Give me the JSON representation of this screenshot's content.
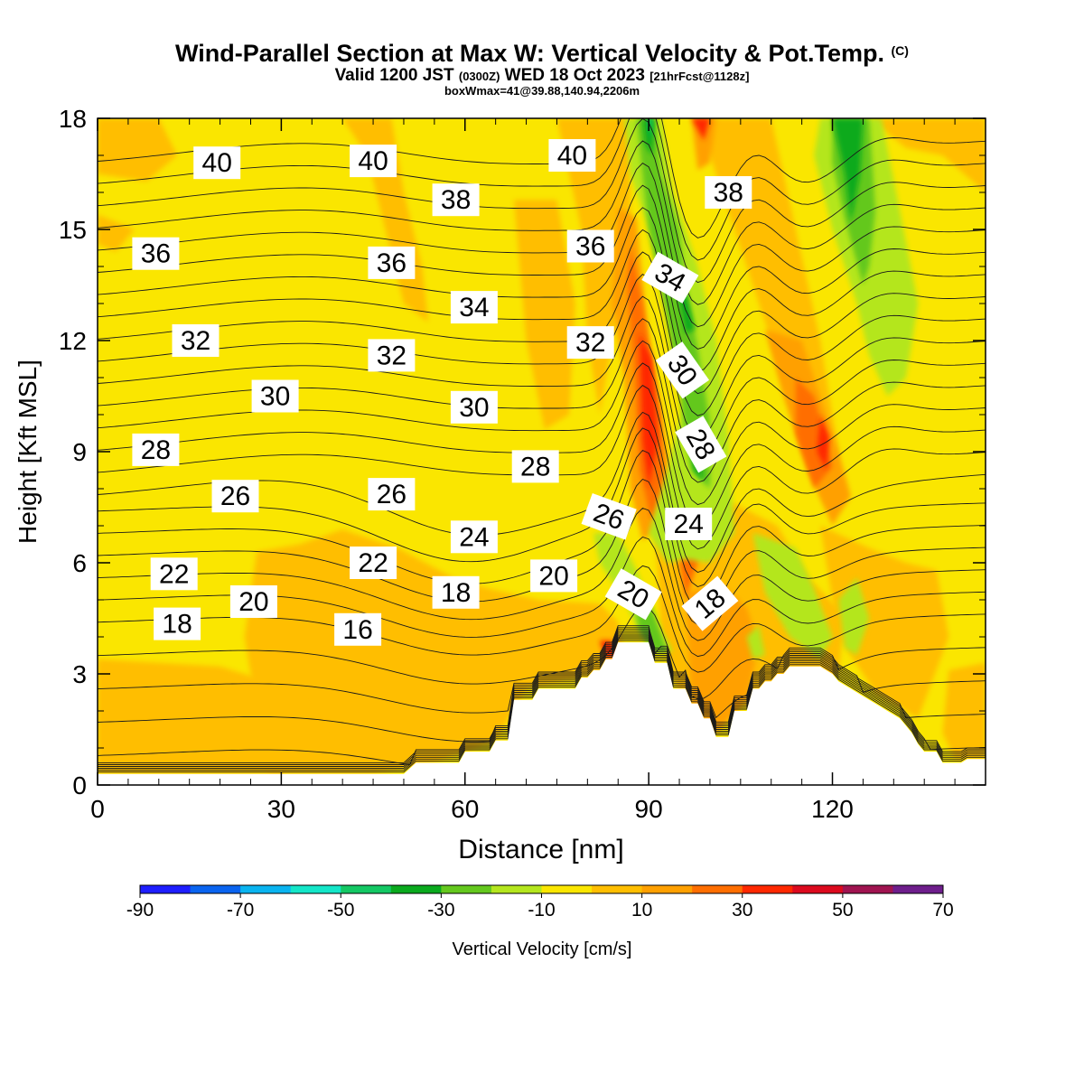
{
  "chart_data": {
    "type": "contour-section",
    "title": "Wind-Parallel Section at Max W: Vertical Velocity & Pot.Temp.",
    "title_mark": "(C)",
    "subtitle_parts": [
      "Valid 1200 JST ",
      "(0300Z)",
      " WED 18 Oct 2023 ",
      "[21hrFcst@1128z]"
    ],
    "subtitle2": "boxWmax=41@39.88,140.94,2206m",
    "xlabel": "Distance [nm]",
    "ylabel": "Height [Kft MSL]",
    "xlim": [
      0,
      145
    ],
    "ylim": [
      0,
      18
    ],
    "xticks": [
      0,
      30,
      60,
      90,
      120
    ],
    "yticks": [
      0,
      3,
      6,
      9,
      12,
      15,
      18
    ],
    "colorbar": {
      "label": "Vertical Velocity [cm/s]",
      "ticks": [
        -90,
        -70,
        -50,
        -30,
        -10,
        10,
        30,
        50,
        70
      ],
      "colors": [
        "#1e1eff",
        "#0a64f0",
        "#0ab4f0",
        "#14e6c8",
        "#14c864",
        "#0aaa1e",
        "#64c81e",
        "#b4e61e",
        "#fae600",
        "#ffbe00",
        "#ffa000",
        "#ff6e00",
        "#ff2800",
        "#dc0a1e",
        "#a01450",
        "#6e1e8c"
      ]
    },
    "terrain": [
      [
        0,
        0.3
      ],
      [
        50,
        0.3
      ],
      [
        52,
        0.6
      ],
      [
        59,
        0.6
      ],
      [
        60,
        0.9
      ],
      [
        64,
        0.9
      ],
      [
        65,
        1.2
      ],
      [
        67,
        1.2
      ],
      [
        68,
        2.3
      ],
      [
        71,
        2.3
      ],
      [
        72,
        2.6
      ],
      [
        78,
        2.6
      ],
      [
        79,
        2.9
      ],
      [
        80,
        2.9
      ],
      [
        81,
        3.1
      ],
      [
        82,
        3.1
      ],
      [
        83,
        3.4
      ],
      [
        84,
        3.4
      ],
      [
        85,
        3.85
      ],
      [
        90,
        3.85
      ],
      [
        91,
        3.3
      ],
      [
        93,
        3.3
      ],
      [
        94,
        2.6
      ],
      [
        96,
        2.6
      ],
      [
        97,
        2.2
      ],
      [
        98,
        2.2
      ],
      [
        99,
        1.8
      ],
      [
        100,
        1.8
      ],
      [
        101,
        1.3
      ],
      [
        103,
        1.3
      ],
      [
        104,
        2.0
      ],
      [
        106,
        2.0
      ],
      [
        107,
        2.6
      ],
      [
        108,
        2.6
      ],
      [
        109,
        2.8
      ],
      [
        110,
        2.8
      ],
      [
        111,
        3.0
      ],
      [
        112,
        3.0
      ],
      [
        113,
        3.2
      ],
      [
        118,
        3.2
      ],
      [
        120,
        3.0
      ],
      [
        121,
        2.8
      ],
      [
        123,
        2.6
      ],
      [
        125,
        2.4
      ],
      [
        127,
        2.2
      ],
      [
        129,
        2.0
      ],
      [
        131,
        1.8
      ],
      [
        132,
        1.6
      ],
      [
        133,
        1.4
      ],
      [
        134,
        1.1
      ],
      [
        135,
        0.9
      ],
      [
        137,
        0.9
      ],
      [
        138,
        0.6
      ],
      [
        141,
        0.6
      ],
      [
        142,
        0.7
      ],
      [
        145,
        0.7
      ]
    ],
    "theta_labels": [
      {
        "text": "40",
        "x": 19.5,
        "y": 16.8,
        "rot": 0
      },
      {
        "text": "40",
        "x": 45,
        "y": 16.85,
        "rot": 0
      },
      {
        "text": "40",
        "x": 77.5,
        "y": 17.0,
        "rot": 0
      },
      {
        "text": "38",
        "x": 58.5,
        "y": 15.8,
        "rot": 0
      },
      {
        "text": "38",
        "x": 103,
        "y": 16.0,
        "rot": 0
      },
      {
        "text": "36",
        "x": 9.5,
        "y": 14.35,
        "rot": 0
      },
      {
        "text": "36",
        "x": 48,
        "y": 14.1,
        "rot": 0
      },
      {
        "text": "36",
        "x": 80.5,
        "y": 14.55,
        "rot": 0
      },
      {
        "text": "34",
        "x": 61.5,
        "y": 12.9,
        "rot": 0
      },
      {
        "text": "34",
        "x": 93.5,
        "y": 13.7,
        "rot": 30
      },
      {
        "text": "32",
        "x": 16,
        "y": 12.0,
        "rot": 0
      },
      {
        "text": "32",
        "x": 48,
        "y": 11.6,
        "rot": 0
      },
      {
        "text": "32",
        "x": 80.5,
        "y": 11.95,
        "rot": 0
      },
      {
        "text": "30",
        "x": 29,
        "y": 10.5,
        "rot": 0
      },
      {
        "text": "30",
        "x": 61.5,
        "y": 10.2,
        "rot": 0
      },
      {
        "text": "30",
        "x": 95.5,
        "y": 11.2,
        "rot": 55
      },
      {
        "text": "28",
        "x": 9.5,
        "y": 9.05,
        "rot": 0
      },
      {
        "text": "28",
        "x": 71.5,
        "y": 8.6,
        "rot": 0
      },
      {
        "text": "28",
        "x": 98.5,
        "y": 9.2,
        "rot": 60
      },
      {
        "text": "26",
        "x": 22.5,
        "y": 7.8,
        "rot": 0
      },
      {
        "text": "26",
        "x": 48,
        "y": 7.85,
        "rot": 0
      },
      {
        "text": "26",
        "x": 83.5,
        "y": 7.25,
        "rot": 20
      },
      {
        "text": "24",
        "x": 61.5,
        "y": 6.7,
        "rot": 0
      },
      {
        "text": "24",
        "x": 96.5,
        "y": 7.05,
        "rot": 0
      },
      {
        "text": "22",
        "x": 12.5,
        "y": 5.7,
        "rot": 0
      },
      {
        "text": "22",
        "x": 45,
        "y": 6.0,
        "rot": 0
      },
      {
        "text": "20",
        "x": 25.5,
        "y": 4.95,
        "rot": 0
      },
      {
        "text": "20",
        "x": 74.5,
        "y": 5.65,
        "rot": 0
      },
      {
        "text": "20",
        "x": 87.5,
        "y": 5.15,
        "rot": 30
      },
      {
        "text": "18",
        "x": 13,
        "y": 4.35,
        "rot": 0
      },
      {
        "text": "18",
        "x": 58.5,
        "y": 5.2,
        "rot": 0
      },
      {
        "text": "18",
        "x": 100,
        "y": 4.9,
        "rot": -40
      },
      {
        "text": "16",
        "x": 42.5,
        "y": 4.2,
        "rot": 0
      }
    ]
  }
}
